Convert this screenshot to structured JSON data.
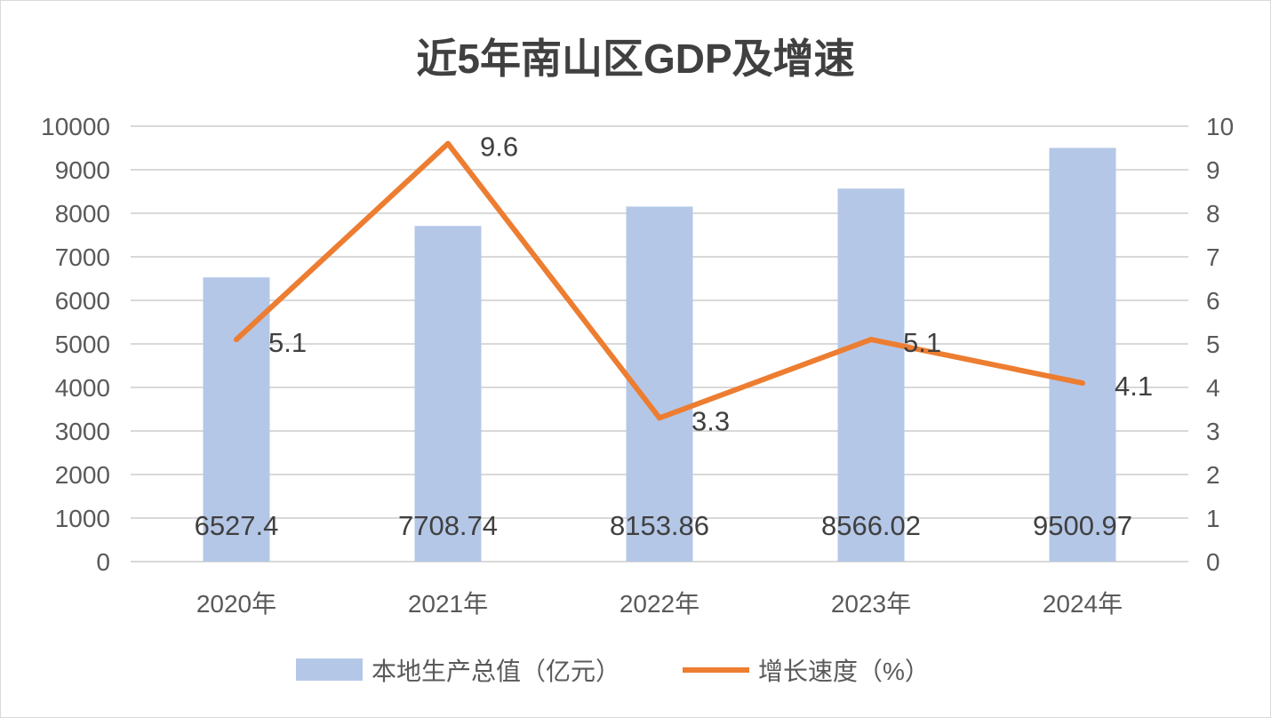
{
  "chart_data": {
    "type": "bar+line",
    "title": "近5年南山区GDP及增速",
    "categories": [
      "2020年",
      "2021年",
      "2022年",
      "2023年",
      "2024年"
    ],
    "series": [
      {
        "name": "本地生产总值（亿元）",
        "type": "bar",
        "axis": "left",
        "color": "#b4c7e7",
        "values": [
          6527.4,
          7708.74,
          8153.86,
          8566.02,
          9500.97
        ],
        "labels": [
          "6527.4",
          "7708.74",
          "8153.86",
          "8566.02",
          "9500.97"
        ]
      },
      {
        "name": "增长速度（%）",
        "type": "line",
        "axis": "right",
        "color": "#ed7d31",
        "values": [
          5.1,
          9.6,
          3.3,
          5.1,
          4.1
        ],
        "labels": [
          "5.1",
          "9.6",
          "3.3",
          "5.1",
          "4.1"
        ]
      }
    ],
    "y_left": {
      "min": 0,
      "max": 10000,
      "step": 1000,
      "ticks": [
        "0",
        "1000",
        "2000",
        "3000",
        "4000",
        "5000",
        "6000",
        "7000",
        "8000",
        "9000",
        "10000"
      ]
    },
    "y_right": {
      "min": 0,
      "max": 10,
      "step": 1,
      "ticks": [
        "0",
        "1",
        "2",
        "3",
        "4",
        "5",
        "6",
        "7",
        "8",
        "9",
        "10"
      ]
    },
    "grid": true,
    "legend": "bottom"
  }
}
